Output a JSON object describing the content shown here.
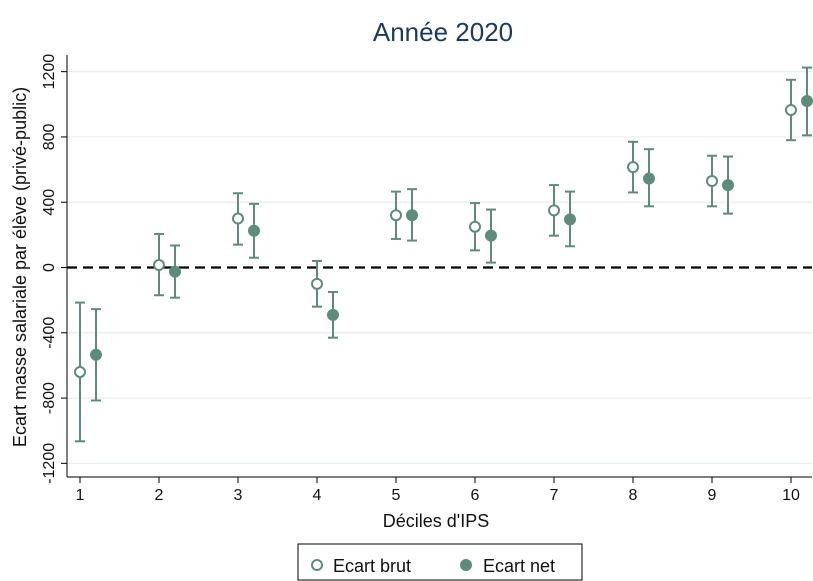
{
  "chart_data": {
    "type": "scatter",
    "title": "Année 2020",
    "xlabel": "Déciles d'IPS",
    "ylabel": "Ecart masse salariale par élève (privé-public)",
    "categories": [
      "1",
      "2",
      "3",
      "4",
      "5",
      "6",
      "7",
      "8",
      "9",
      "10"
    ],
    "ylim": [
      -1300,
      1300
    ],
    "yticks": [
      -1200,
      -800,
      -400,
      0,
      400,
      800,
      1200
    ],
    "grid": true,
    "reference_line": 0,
    "legend_position": "bottom",
    "series": [
      {
        "name": "Ecart brut",
        "marker": "hollow-circle",
        "color": "#5e8c7c",
        "values": [
          -640,
          15,
          300,
          -100,
          320,
          250,
          350,
          615,
          530,
          965
        ],
        "lower": [
          -1065,
          -170,
          140,
          -240,
          175,
          105,
          195,
          460,
          375,
          780
        ],
        "upper": [
          -215,
          205,
          455,
          40,
          465,
          395,
          505,
          770,
          685,
          1150
        ]
      },
      {
        "name": "Ecart net",
        "marker": "filled-circle",
        "color": "#5e8c7c",
        "values": [
          -535,
          -25,
          225,
          -290,
          320,
          195,
          295,
          545,
          505,
          1020
        ],
        "lower": [
          -815,
          -185,
          60,
          -430,
          165,
          30,
          130,
          375,
          330,
          810
        ],
        "upper": [
          -255,
          135,
          390,
          -150,
          480,
          355,
          465,
          725,
          680,
          1225
        ]
      }
    ]
  }
}
